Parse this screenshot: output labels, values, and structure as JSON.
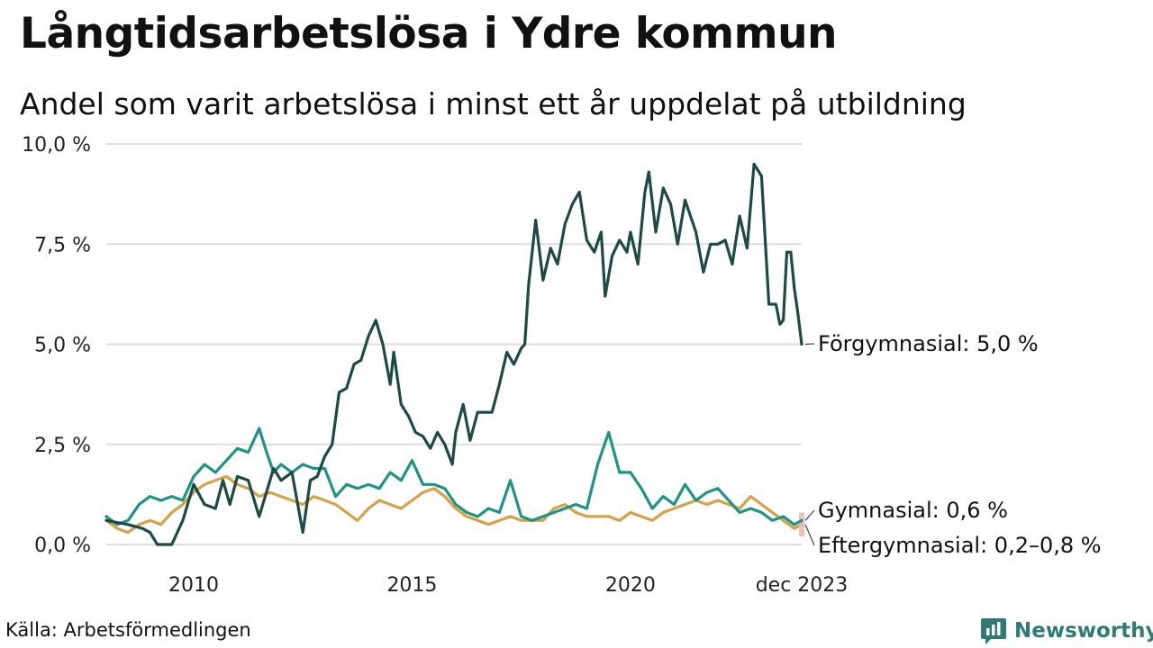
{
  "title": "Långtidsarbetslösa i Ydre kommun",
  "subtitle": "Andel som varit arbetslösa i minst ett år uppdelat på utbildning",
  "source": "Källa: Arbetsförmedlingen",
  "brand": "Newsworthy",
  "colors": {
    "forgymnasial": "#1e4a45",
    "gymnasial": "#1f9486",
    "eftergymnasial": "#d4a24a",
    "range_marker": "#f0b6b6",
    "grid": "#dddddd",
    "brand": "#2f7a73"
  },
  "chart_data": {
    "type": "line",
    "title": "Långtidsarbetslösa i Ydre kommun",
    "ylabel": "",
    "xlabel": "",
    "ylim": [
      0,
      10
    ],
    "xlim": [
      2008.0,
      2023.92
    ],
    "grid": true,
    "y_ticks": [
      {
        "value": 0,
        "label": "0,0 %"
      },
      {
        "value": 2.5,
        "label": "2,5 %"
      },
      {
        "value": 5,
        "label": "5,0 %"
      },
      {
        "value": 7.5,
        "label": "7,5 %"
      },
      {
        "value": 10,
        "label": "10,0 %"
      }
    ],
    "x_ticks": [
      {
        "value": 2010,
        "label": "2010"
      },
      {
        "value": 2015,
        "label": "2015"
      },
      {
        "value": 2020,
        "label": "2020"
      },
      {
        "value": 2023.92,
        "label": "dec 2023"
      }
    ],
    "series": [
      {
        "name": "Förgymnasial",
        "label": "Förgymnasial: 5,0 %",
        "color_key": "forgymnasial",
        "points": [
          [
            2008.0,
            0.6
          ],
          [
            2008.5,
            0.5
          ],
          [
            2008.83,
            0.4
          ],
          [
            2009.0,
            0.3
          ],
          [
            2009.17,
            0.0
          ],
          [
            2009.5,
            0.0
          ],
          [
            2009.75,
            0.6
          ],
          [
            2010.0,
            1.5
          ],
          [
            2010.25,
            1.0
          ],
          [
            2010.5,
            0.9
          ],
          [
            2010.67,
            1.6
          ],
          [
            2010.83,
            1.0
          ],
          [
            2011.0,
            1.7
          ],
          [
            2011.25,
            1.6
          ],
          [
            2011.5,
            0.7
          ],
          [
            2011.83,
            1.9
          ],
          [
            2012.0,
            1.6
          ],
          [
            2012.25,
            1.8
          ],
          [
            2012.5,
            0.3
          ],
          [
            2012.67,
            1.6
          ],
          [
            2012.83,
            1.7
          ],
          [
            2013.0,
            2.2
          ],
          [
            2013.17,
            2.5
          ],
          [
            2013.33,
            3.8
          ],
          [
            2013.5,
            3.9
          ],
          [
            2013.67,
            4.5
          ],
          [
            2013.83,
            4.6
          ],
          [
            2014.0,
            5.2
          ],
          [
            2014.17,
            5.6
          ],
          [
            2014.33,
            5.0
          ],
          [
            2014.5,
            4.0
          ],
          [
            2014.58,
            4.8
          ],
          [
            2014.75,
            3.5
          ],
          [
            2014.92,
            3.2
          ],
          [
            2015.08,
            2.8
          ],
          [
            2015.25,
            2.7
          ],
          [
            2015.42,
            2.4
          ],
          [
            2015.58,
            2.8
          ],
          [
            2015.75,
            2.5
          ],
          [
            2015.92,
            2.0
          ],
          [
            2016.0,
            2.8
          ],
          [
            2016.17,
            3.5
          ],
          [
            2016.33,
            2.6
          ],
          [
            2016.5,
            3.3
          ],
          [
            2016.67,
            3.3
          ],
          [
            2016.83,
            3.3
          ],
          [
            2017.0,
            4.0
          ],
          [
            2017.17,
            4.8
          ],
          [
            2017.33,
            4.5
          ],
          [
            2017.5,
            4.9
          ],
          [
            2017.58,
            5.0
          ],
          [
            2017.67,
            6.5
          ],
          [
            2017.83,
            8.1
          ],
          [
            2018.0,
            6.6
          ],
          [
            2018.17,
            7.4
          ],
          [
            2018.33,
            7.0
          ],
          [
            2018.5,
            8.0
          ],
          [
            2018.67,
            8.5
          ],
          [
            2018.83,
            8.8
          ],
          [
            2019.0,
            7.6
          ],
          [
            2019.17,
            7.3
          ],
          [
            2019.33,
            7.8
          ],
          [
            2019.42,
            6.2
          ],
          [
            2019.58,
            7.2
          ],
          [
            2019.75,
            7.6
          ],
          [
            2019.92,
            7.3
          ],
          [
            2020.0,
            7.8
          ],
          [
            2020.17,
            7.0
          ],
          [
            2020.33,
            8.8
          ],
          [
            2020.42,
            9.3
          ],
          [
            2020.58,
            7.8
          ],
          [
            2020.75,
            8.9
          ],
          [
            2020.92,
            8.5
          ],
          [
            2021.08,
            7.5
          ],
          [
            2021.25,
            8.6
          ],
          [
            2021.5,
            7.8
          ],
          [
            2021.67,
            6.8
          ],
          [
            2021.83,
            7.5
          ],
          [
            2022.0,
            7.5
          ],
          [
            2022.17,
            7.6
          ],
          [
            2022.33,
            7.0
          ],
          [
            2022.5,
            8.2
          ],
          [
            2022.67,
            7.4
          ],
          [
            2022.83,
            9.5
          ],
          [
            2023.0,
            9.2
          ],
          [
            2023.17,
            6.0
          ],
          [
            2023.33,
            6.0
          ],
          [
            2023.42,
            5.5
          ],
          [
            2023.5,
            5.6
          ],
          [
            2023.58,
            7.3
          ],
          [
            2023.67,
            7.3
          ],
          [
            2023.75,
            6.4
          ],
          [
            2023.83,
            5.8
          ],
          [
            2023.92,
            5.0
          ]
        ]
      },
      {
        "name": "Gymnasial",
        "label": "Gymnasial: 0,6 %",
        "color_key": "gymnasial",
        "points": [
          [
            2008.0,
            0.7
          ],
          [
            2008.25,
            0.5
          ],
          [
            2008.5,
            0.6
          ],
          [
            2008.75,
            1.0
          ],
          [
            2009.0,
            1.2
          ],
          [
            2009.25,
            1.1
          ],
          [
            2009.5,
            1.2
          ],
          [
            2009.75,
            1.1
          ],
          [
            2010.0,
            1.7
          ],
          [
            2010.25,
            2.0
          ],
          [
            2010.5,
            1.8
          ],
          [
            2010.75,
            2.1
          ],
          [
            2011.0,
            2.4
          ],
          [
            2011.25,
            2.3
          ],
          [
            2011.5,
            2.9
          ],
          [
            2011.67,
            2.3
          ],
          [
            2011.83,
            1.8
          ],
          [
            2012.0,
            2.0
          ],
          [
            2012.25,
            1.8
          ],
          [
            2012.5,
            2.0
          ],
          [
            2012.75,
            1.9
          ],
          [
            2013.0,
            1.9
          ],
          [
            2013.25,
            1.2
          ],
          [
            2013.5,
            1.5
          ],
          [
            2013.75,
            1.4
          ],
          [
            2014.0,
            1.5
          ],
          [
            2014.25,
            1.4
          ],
          [
            2014.5,
            1.8
          ],
          [
            2014.75,
            1.6
          ],
          [
            2015.0,
            2.1
          ],
          [
            2015.25,
            1.5
          ],
          [
            2015.5,
            1.5
          ],
          [
            2015.75,
            1.4
          ],
          [
            2016.0,
            1.0
          ],
          [
            2016.25,
            0.8
          ],
          [
            2016.5,
            0.7
          ],
          [
            2016.75,
            0.9
          ],
          [
            2017.0,
            0.8
          ],
          [
            2017.25,
            1.6
          ],
          [
            2017.5,
            0.7
          ],
          [
            2017.75,
            0.6
          ],
          [
            2018.0,
            0.7
          ],
          [
            2018.25,
            0.8
          ],
          [
            2018.5,
            0.9
          ],
          [
            2018.75,
            1.0
          ],
          [
            2019.0,
            0.9
          ],
          [
            2019.25,
            2.0
          ],
          [
            2019.5,
            2.8
          ],
          [
            2019.75,
            1.8
          ],
          [
            2020.0,
            1.8
          ],
          [
            2020.25,
            1.4
          ],
          [
            2020.5,
            0.9
          ],
          [
            2020.75,
            1.2
          ],
          [
            2021.0,
            1.0
          ],
          [
            2021.25,
            1.5
          ],
          [
            2021.5,
            1.1
          ],
          [
            2021.75,
            1.3
          ],
          [
            2022.0,
            1.4
          ],
          [
            2022.25,
            1.1
          ],
          [
            2022.5,
            0.8
          ],
          [
            2022.75,
            0.9
          ],
          [
            2023.0,
            0.8
          ],
          [
            2023.25,
            0.6
          ],
          [
            2023.5,
            0.7
          ],
          [
            2023.75,
            0.5
          ],
          [
            2023.92,
            0.6
          ]
        ]
      },
      {
        "name": "Eftergymnasial",
        "label": "Eftergymnasial: 0,2–0,8 %",
        "color_key": "eftergymnasial",
        "range": [
          0.2,
          0.8
        ],
        "points": [
          [
            2008.0,
            0.6
          ],
          [
            2008.25,
            0.4
          ],
          [
            2008.5,
            0.3
          ],
          [
            2008.75,
            0.5
          ],
          [
            2009.0,
            0.6
          ],
          [
            2009.25,
            0.5
          ],
          [
            2009.5,
            0.8
          ],
          [
            2009.75,
            1.0
          ],
          [
            2010.0,
            1.3
          ],
          [
            2010.25,
            1.5
          ],
          [
            2010.5,
            1.6
          ],
          [
            2010.75,
            1.7
          ],
          [
            2011.0,
            1.5
          ],
          [
            2011.25,
            1.4
          ],
          [
            2011.5,
            1.2
          ],
          [
            2011.75,
            1.3
          ],
          [
            2012.0,
            1.2
          ],
          [
            2012.25,
            1.1
          ],
          [
            2012.5,
            1.0
          ],
          [
            2012.75,
            1.2
          ],
          [
            2013.0,
            1.1
          ],
          [
            2013.25,
            1.0
          ],
          [
            2013.5,
            0.8
          ],
          [
            2013.75,
            0.6
          ],
          [
            2014.0,
            0.9
          ],
          [
            2014.25,
            1.1
          ],
          [
            2014.5,
            1.0
          ],
          [
            2014.75,
            0.9
          ],
          [
            2015.0,
            1.1
          ],
          [
            2015.25,
            1.3
          ],
          [
            2015.5,
            1.4
          ],
          [
            2015.75,
            1.2
          ],
          [
            2016.0,
            0.9
          ],
          [
            2016.25,
            0.7
          ],
          [
            2016.5,
            0.6
          ],
          [
            2016.75,
            0.5
          ],
          [
            2017.0,
            0.6
          ],
          [
            2017.25,
            0.7
          ],
          [
            2017.5,
            0.6
          ],
          [
            2017.75,
            0.6
          ],
          [
            2018.0,
            0.6
          ],
          [
            2018.25,
            0.9
          ],
          [
            2018.5,
            1.0
          ],
          [
            2018.75,
            0.8
          ],
          [
            2019.0,
            0.7
          ],
          [
            2019.25,
            0.7
          ],
          [
            2019.5,
            0.7
          ],
          [
            2019.75,
            0.6
          ],
          [
            2020.0,
            0.8
          ],
          [
            2020.25,
            0.7
          ],
          [
            2020.5,
            0.6
          ],
          [
            2020.75,
            0.8
          ],
          [
            2021.0,
            0.9
          ],
          [
            2021.25,
            1.0
          ],
          [
            2021.5,
            1.1
          ],
          [
            2021.75,
            1.0
          ],
          [
            2022.0,
            1.1
          ],
          [
            2022.25,
            1.0
          ],
          [
            2022.5,
            0.9
          ],
          [
            2022.75,
            1.2
          ],
          [
            2023.0,
            1.0
          ],
          [
            2023.25,
            0.8
          ],
          [
            2023.5,
            0.6
          ],
          [
            2023.75,
            0.4
          ],
          [
            2023.92,
            0.5
          ]
        ]
      }
    ]
  }
}
